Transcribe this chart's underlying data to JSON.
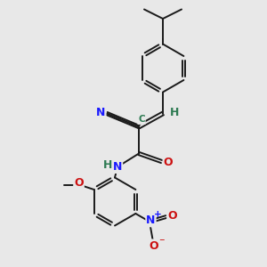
{
  "background_color": "#e8e8e8",
  "bond_color": "#1a1a1a",
  "atom_colors": {
    "C": "#2d7a52",
    "N": "#1a1aff",
    "O": "#cc1111",
    "H": "#2d7a52"
  },
  "figsize": [
    3.0,
    3.0
  ],
  "dpi": 100
}
